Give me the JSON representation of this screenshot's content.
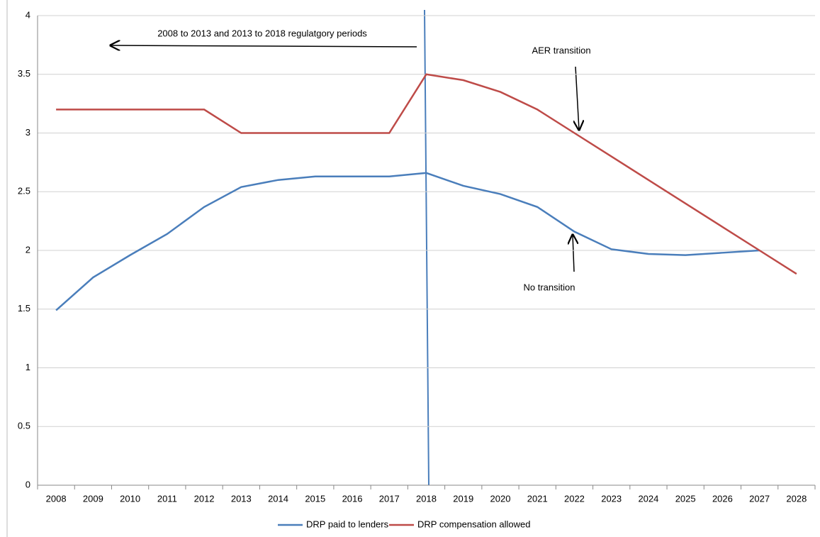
{
  "chart_data": {
    "type": "line",
    "categories": [
      "2008",
      "2009",
      "2010",
      "2011",
      "2012",
      "2013",
      "2014",
      "2015",
      "2016",
      "2017",
      "2018",
      "2019",
      "2020",
      "2021",
      "2022",
      "2023",
      "2024",
      "2025",
      "2026",
      "2027",
      "2028"
    ],
    "series": [
      {
        "name": "DRP paid to lenders",
        "color": "#4a7ebb",
        "values": [
          1.49,
          1.77,
          1.96,
          2.14,
          2.37,
          2.54,
          2.6,
          2.63,
          2.63,
          2.63,
          2.66,
          2.55,
          2.48,
          2.37,
          2.16,
          2.01,
          1.97,
          1.96,
          1.98,
          2.0,
          null
        ]
      },
      {
        "name": "DRP compensation allowed",
        "color": "#be4b48",
        "values": [
          3.2,
          3.2,
          3.2,
          3.2,
          3.2,
          3.0,
          3.0,
          3.0,
          3.0,
          3.0,
          3.5,
          3.45,
          3.35,
          3.2,
          3.0,
          2.8,
          2.6,
          2.4,
          2.2,
          2.0,
          1.8
        ]
      }
    ],
    "ylim": [
      0,
      4
    ],
    "yticks": [
      0,
      0.5,
      1,
      1.5,
      2,
      2.5,
      3,
      3.5,
      4
    ],
    "grid": true,
    "legend": "bottom",
    "annotations": [
      "2008 to 2013  and 2013 to 2018 regulatgory periods",
      "AER transition",
      "No transition"
    ]
  }
}
